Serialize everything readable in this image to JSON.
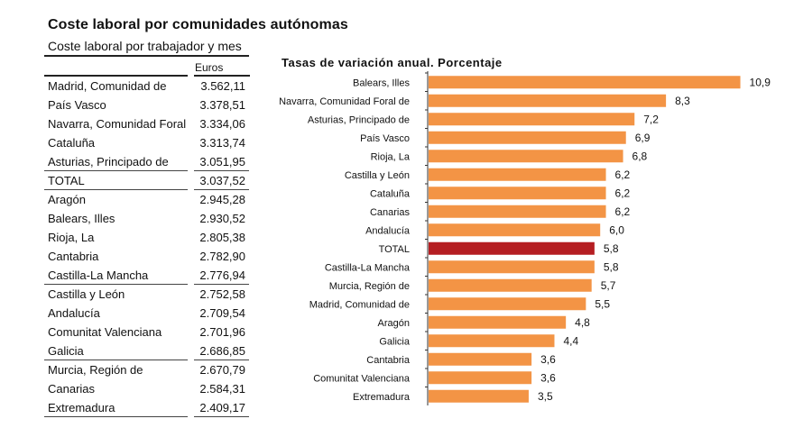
{
  "page": {
    "title": "Coste laboral por comunidades autónomas"
  },
  "table": {
    "subtitle": "Coste laboral por trabajador y mes",
    "column_header": "Euros",
    "rows": [
      {
        "name": "Madrid, Comunidad de",
        "value": "3.562,11"
      },
      {
        "name": "País Vasco",
        "value": "3.378,51"
      },
      {
        "name": "Navarra, Comunidad Foral",
        "value": "3.334,06"
      },
      {
        "name": "Cataluña",
        "value": "3.313,74"
      },
      {
        "name": "Asturias, Principado de",
        "value": "3.051,95"
      },
      {
        "name": "TOTAL",
        "value": "3.037,52"
      },
      {
        "name": "Aragón",
        "value": "2.945,28"
      },
      {
        "name": "Balears, Illes",
        "value": "2.930,52"
      },
      {
        "name": "Rioja, La",
        "value": "2.805,38"
      },
      {
        "name": "Cantabria",
        "value": "2.782,90"
      },
      {
        "name": "Castilla-La Mancha",
        "value": "2.776,94"
      },
      {
        "name": "Castilla y León",
        "value": "2.752,58"
      },
      {
        "name": "Andalucía",
        "value": "2.709,54"
      },
      {
        "name": "Comunitat Valenciana",
        "value": "2.701,96"
      },
      {
        "name": "Galicia",
        "value": "2.686,85"
      },
      {
        "name": "Murcia, Región de",
        "value": "2.670,79"
      },
      {
        "name": "Canarias",
        "value": "2.584,31"
      },
      {
        "name": "Extremadura",
        "value": "2.409,17"
      }
    ]
  },
  "chart_data": {
    "type": "bar",
    "orientation": "horizontal",
    "title": "Tasas de variación anual. Porcentaje",
    "xlabel": "",
    "ylabel": "",
    "xlim": [
      0,
      11.5
    ],
    "grid": false,
    "categories": [
      "Balears, Illes",
      "Navarra, Comunidad Foral de",
      "Asturias, Principado de",
      "País Vasco",
      "Rioja, La",
      "Castilla y León",
      "Cataluña",
      "Canarias",
      "Andalucía",
      "TOTAL",
      "Castilla-La Mancha",
      "Murcia, Región de",
      "Madrid, Comunidad de",
      "Aragón",
      "Galicia",
      "Cantabria",
      "Comunitat Valenciana",
      "Extremadura"
    ],
    "values": [
      10.9,
      8.3,
      7.2,
      6.9,
      6.8,
      6.2,
      6.2,
      6.2,
      6.0,
      5.8,
      5.8,
      5.7,
      5.5,
      4.8,
      4.4,
      3.6,
      3.6,
      3.5
    ],
    "data_labels": [
      "10,9",
      "8,3",
      "7,2",
      "6,9",
      "6,8",
      "6,2",
      "6,2",
      "6,2",
      "6,0",
      "5,8",
      "5,8",
      "5,7",
      "5,5",
      "4,8",
      "4,4",
      "3,6",
      "3,6",
      "3,5"
    ],
    "highlight_category": "TOTAL",
    "colors": {
      "default": "#F39445",
      "highlight": "#B51E22"
    }
  }
}
